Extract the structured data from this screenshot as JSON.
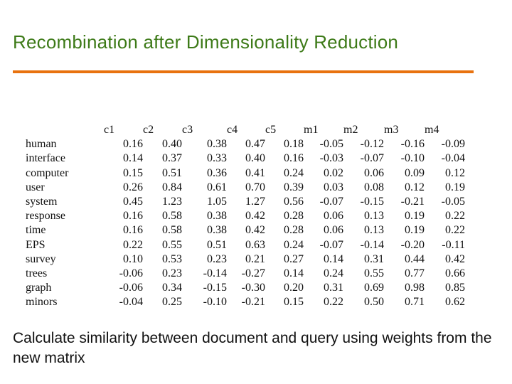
{
  "slide": {
    "title": "Recombination after Dimensionality Reduction",
    "caption": "Calculate similarity between document and query using weights from the new matrix",
    "colors": {
      "title": "#3d7a18",
      "rule": "#e8720f"
    }
  },
  "matrix": {
    "columns": [
      "c1",
      "c2",
      "c3",
      "c4",
      "c5",
      "m1",
      "m2",
      "m3",
      "m4"
    ],
    "rows": [
      {
        "label": "human",
        "values": [
          "0.16",
          "0.40",
          "0.38",
          "0.47",
          "0.18",
          "-0.05",
          "-0.12",
          "-0.16",
          "-0.09"
        ]
      },
      {
        "label": "interface",
        "values": [
          "0.14",
          "0.37",
          "0.33",
          "0.40",
          "0.16",
          "-0.03",
          "-0.07",
          "-0.10",
          "-0.04"
        ]
      },
      {
        "label": "computer",
        "values": [
          "0.15",
          "0.51",
          "0.36",
          "0.41",
          "0.24",
          "0.02",
          "0.06",
          "0.09",
          "0.12"
        ]
      },
      {
        "label": "user",
        "values": [
          "0.26",
          "0.84",
          "0.61",
          "0.70",
          "0.39",
          "0.03",
          "0.08",
          "0.12",
          "0.19"
        ]
      },
      {
        "label": "system",
        "values": [
          "0.45",
          "1.23",
          "1.05",
          "1.27",
          "0.56",
          "-0.07",
          "-0.15",
          "-0.21",
          "-0.05"
        ]
      },
      {
        "label": "response",
        "values": [
          "0.16",
          "0.58",
          "0.38",
          "0.42",
          "0.28",
          "0.06",
          "0.13",
          "0.19",
          "0.22"
        ]
      },
      {
        "label": "time",
        "values": [
          "0.16",
          "0.58",
          "0.38",
          "0.42",
          "0.28",
          "0.06",
          "0.13",
          "0.19",
          "0.22"
        ]
      },
      {
        "label": "EPS",
        "values": [
          "0.22",
          "0.55",
          "0.51",
          "0.63",
          "0.24",
          "-0.07",
          "-0.14",
          "-0.20",
          "-0.11"
        ]
      },
      {
        "label": "survey",
        "values": [
          "0.10",
          "0.53",
          "0.23",
          "0.21",
          "0.27",
          "0.14",
          "0.31",
          "0.44",
          "0.42"
        ]
      },
      {
        "label": "trees",
        "values": [
          "-0.06",
          "0.23",
          "-0.14",
          "-0.27",
          "0.14",
          "0.24",
          "0.55",
          "0.77",
          "0.66"
        ]
      },
      {
        "label": "graph",
        "values": [
          "-0.06",
          "0.34",
          "-0.15",
          "-0.30",
          "0.20",
          "0.31",
          "0.69",
          "0.98",
          "0.85"
        ]
      },
      {
        "label": "minors",
        "values": [
          "-0.04",
          "0.25",
          "-0.10",
          "-0.21",
          "0.15",
          "0.22",
          "0.50",
          "0.71",
          "0.62"
        ]
      }
    ]
  }
}
